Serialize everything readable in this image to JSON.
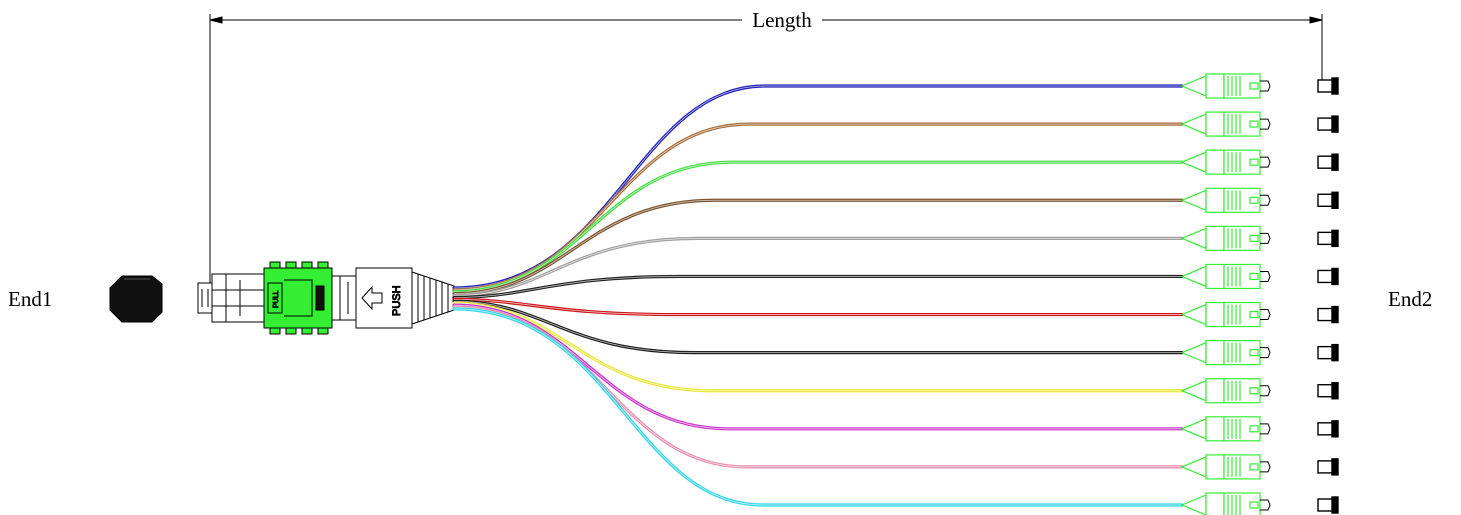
{
  "labels": {
    "length": "Length",
    "end1": "End1",
    "end2": "End2",
    "push": "PUSH",
    "pull": "PULL"
  },
  "colors": {
    "connector_green": "#33ee33",
    "outline": "#000000",
    "cap_black": "#111111"
  },
  "fibers": [
    {
      "color": "#2323b8"
    },
    {
      "color": "#a8703c"
    },
    {
      "color": "#44dd44"
    },
    {
      "color": "#7a5230"
    },
    {
      "color": "#a0a0a0"
    },
    {
      "color": "#222222"
    },
    {
      "color": "#cc1b1b"
    },
    {
      "color": "#222222"
    },
    {
      "color": "#e8e83c"
    },
    {
      "color": "#cc33cc"
    },
    {
      "color": "#e890b0"
    },
    {
      "color": "#33d6e6"
    }
  ]
}
